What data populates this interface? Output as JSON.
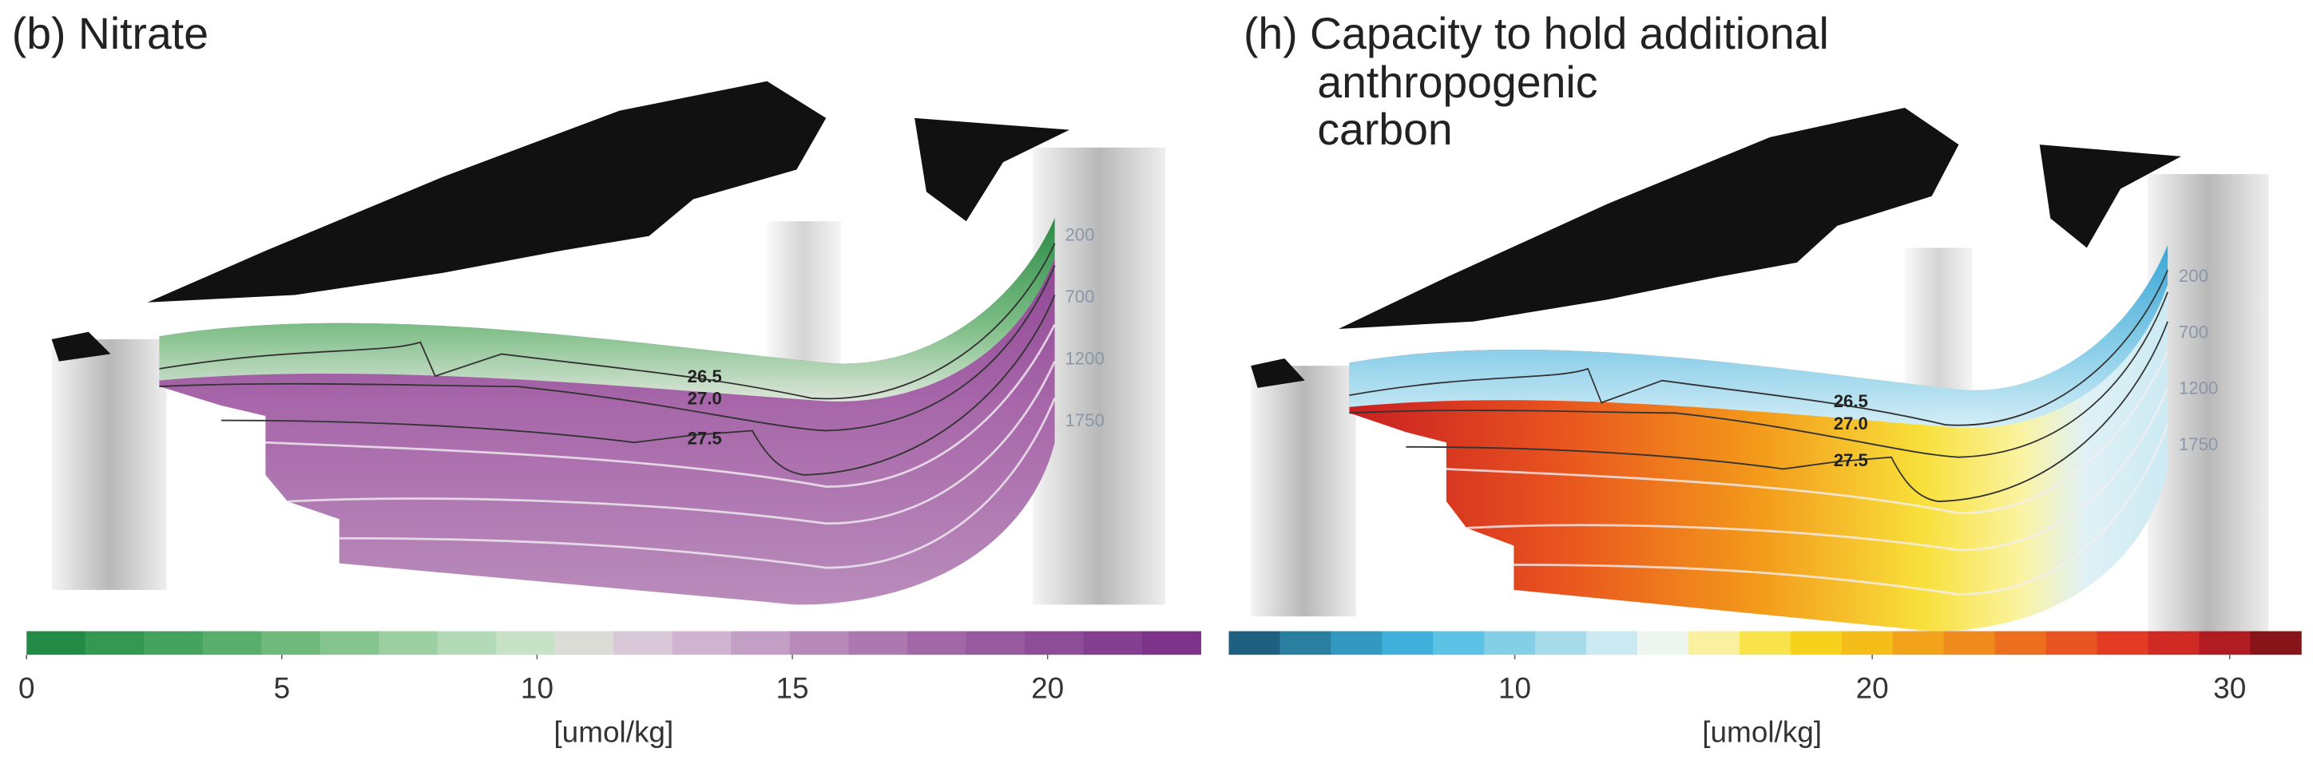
{
  "panels": [
    {
      "title_lines": [
        "(b) Nitrate"
      ],
      "contour_labels": [
        "26.5",
        "27.0",
        "27.5"
      ],
      "depth_labels": [
        "200",
        "700",
        "1200",
        "1750"
      ],
      "colorbar": {
        "label": "[umol/kg]",
        "lim": [
          0,
          23
        ],
        "ticks": [
          0,
          5,
          10,
          15,
          20
        ],
        "colors": [
          "#238b45",
          "#349852",
          "#46a35f",
          "#5aae6d",
          "#6fb97d",
          "#86c48f",
          "#9ccfa2",
          "#b3dab6",
          "#c8e2c8",
          "#dcdcd6",
          "#d9c8d8",
          "#cfb3d0",
          "#c39ec5",
          "#b88aba",
          "#ad77b0",
          "#a267a7",
          "#985a9f",
          "#8e4d97",
          "#853f90",
          "#7c3389"
        ]
      }
    },
    {
      "title_lines": [
        "(h) Capacity to hold additional",
        "anthropogenic",
        "carbon"
      ],
      "contour_labels": [
        "26.5",
        "27.0",
        "27.5"
      ],
      "depth_labels": [
        "200",
        "700",
        "1200",
        "1750"
      ],
      "colorbar": {
        "label": "[umol/kg]",
        "lim": [
          2,
          32
        ],
        "ticks": [
          10,
          20,
          30
        ],
        "colors": [
          "#1f5f7f",
          "#2a7fa0",
          "#3399c0",
          "#3fb0dc",
          "#5cc2e6",
          "#82cfe6",
          "#a6dcea",
          "#cbe9f0",
          "#eef6f2",
          "#faf1a0",
          "#f9e34a",
          "#f6d21c",
          "#f5bd1a",
          "#f2a21b",
          "#ef8a1d",
          "#ec6f20",
          "#e85523",
          "#e33b24",
          "#d02a25",
          "#b01c22",
          "#861418"
        ]
      }
    }
  ]
}
